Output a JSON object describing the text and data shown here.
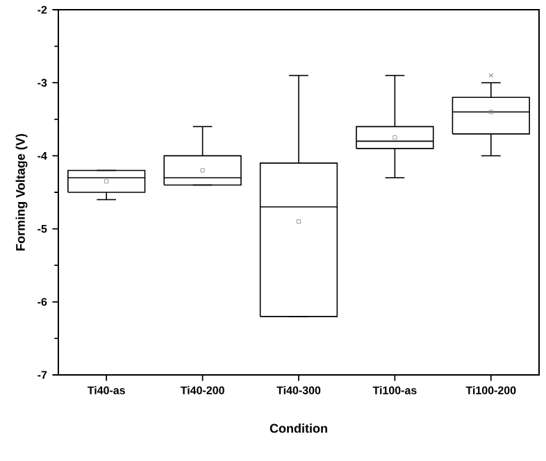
{
  "chart_data": {
    "type": "box",
    "xlabel": "Condition",
    "ylabel": "Forming Voltage (V)",
    "categories": [
      "Ti40-as",
      "Ti40-200",
      "Ti40-300",
      "Ti100-as",
      "Ti100-200"
    ],
    "boxes": [
      {
        "low": -4.6,
        "q1": -4.5,
        "median": -4.3,
        "q3": -4.2,
        "high": -4.2,
        "mean": -4.35
      },
      {
        "low": -4.4,
        "q1": -4.4,
        "median": -4.3,
        "q3": -4.0,
        "high": -3.6,
        "mean": -4.2
      },
      {
        "low": -6.2,
        "q1": -6.2,
        "median": -4.7,
        "q3": -4.1,
        "high": -2.9,
        "mean": -4.9
      },
      {
        "low": -4.3,
        "q1": -3.9,
        "median": -3.8,
        "q3": -3.6,
        "high": -2.9,
        "mean": -3.75
      },
      {
        "low": -4.0,
        "q1": -3.7,
        "median": -3.4,
        "q3": -3.2,
        "high": -3.0,
        "mean": -3.4,
        "outliers": [
          -2.9
        ]
      }
    ],
    "ylim": [
      -7,
      -2
    ],
    "yticks": [
      -7,
      -6,
      -5,
      -4,
      -3,
      -2
    ],
    "grid": false
  }
}
